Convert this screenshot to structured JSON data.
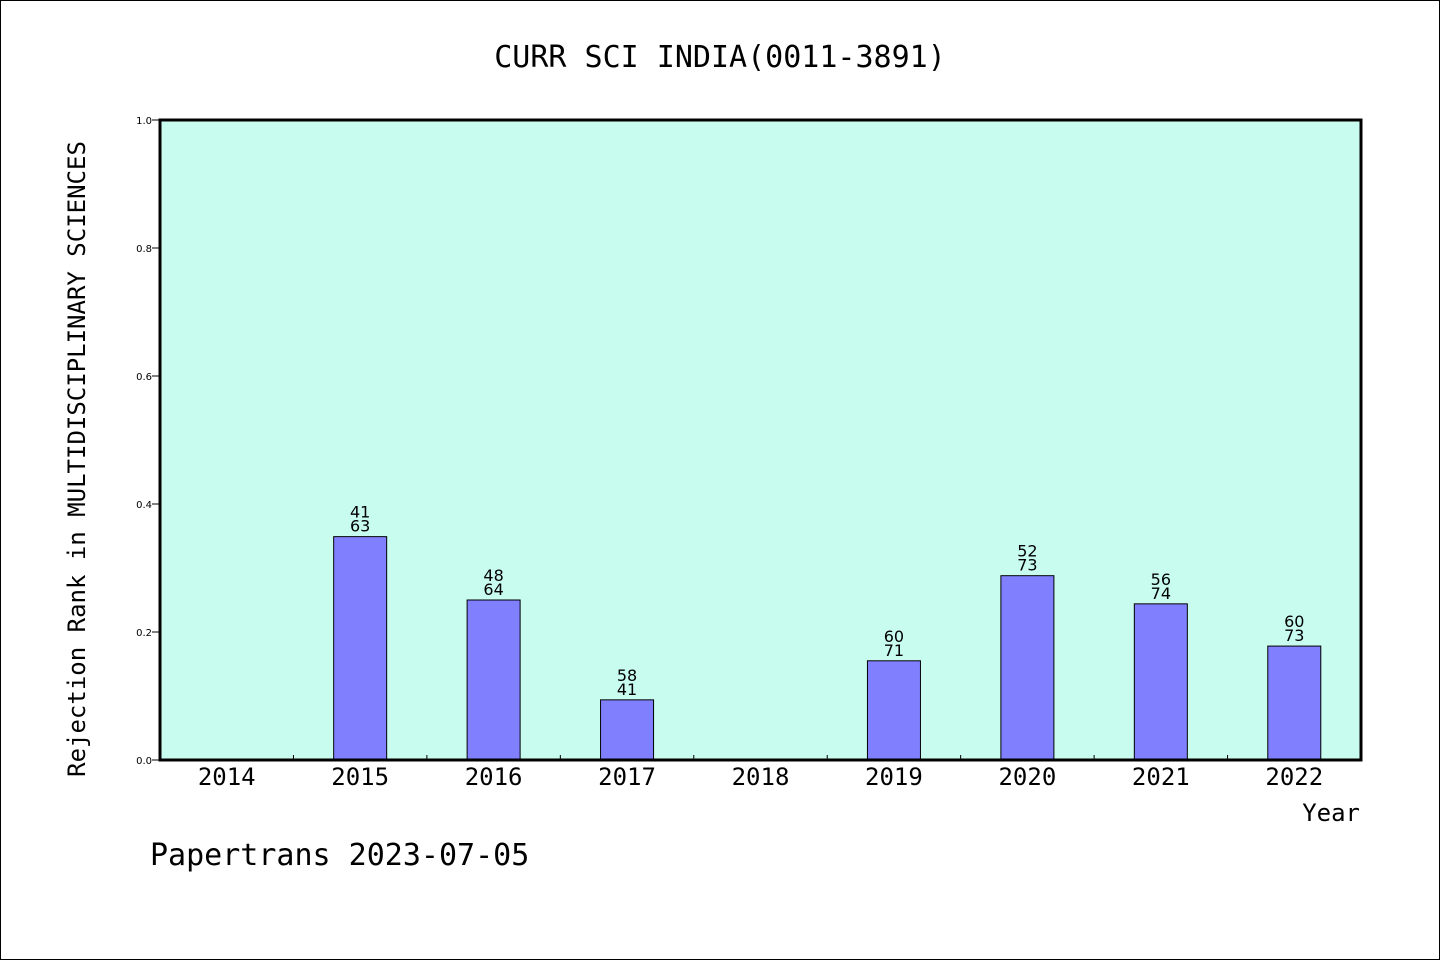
{
  "chart_data": {
    "type": "bar",
    "title": "CURR SCI INDIA(0011-3891)",
    "xlabel": "Year",
    "ylabel": "Rejection Rank in MULTIDISCIPLINARY SCIENCES",
    "ylim": [
      0,
      1.0
    ],
    "yticks": [
      "0.0",
      "0.2",
      "0.4",
      "0.6",
      "0.8",
      "1.0"
    ],
    "categories": [
      "2014",
      "2015",
      "2016",
      "2017",
      "2018",
      "2019",
      "2020",
      "2021",
      "2022"
    ],
    "values": [
      null,
      0.349,
      0.25,
      0.094,
      null,
      0.155,
      0.288,
      0.244,
      0.178
    ],
    "labels_top": [
      "",
      "41",
      "48",
      "58",
      "",
      "60",
      "52",
      "56",
      "60"
    ],
    "labels_bottom": [
      "",
      "63",
      "64",
      "41",
      "",
      "71",
      "73",
      "74",
      "73"
    ],
    "grid": false,
    "colors": {
      "plot_background": "#c8fcee",
      "bar_fill": "#8080ff",
      "bar_stroke": "#000000"
    }
  },
  "footer": "Papertrans 2023-07-05"
}
